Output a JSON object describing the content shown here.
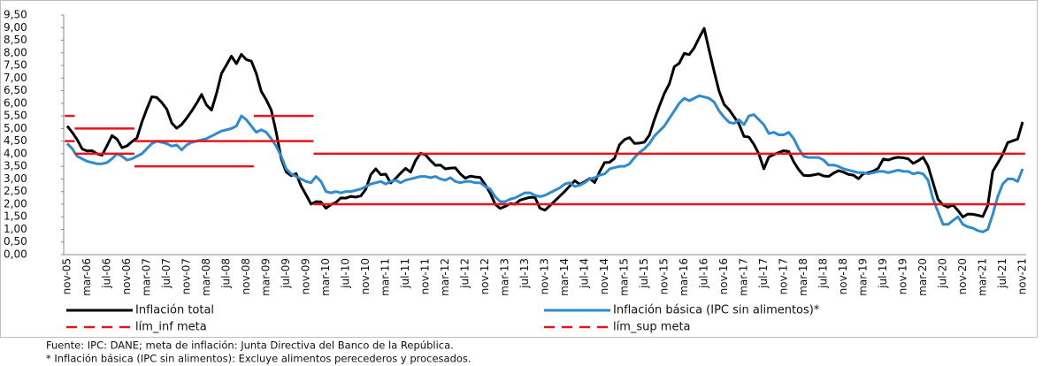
{
  "chart_data": {
    "type": "line",
    "categories": [
      "nov-05",
      null,
      null,
      null,
      "mar-06",
      null,
      null,
      null,
      "jul-06",
      null,
      null,
      null,
      "nov-06",
      null,
      null,
      null,
      "mar-07",
      null,
      null,
      null,
      "jul-07",
      null,
      null,
      null,
      "nov-07",
      null,
      null,
      null,
      "mar-08",
      null,
      null,
      null,
      "jul-08",
      null,
      null,
      null,
      "nov-08",
      null,
      null,
      null,
      "mar-09",
      null,
      null,
      null,
      "jul-09",
      null,
      null,
      null,
      "nov-09",
      null,
      null,
      null,
      "mar-10",
      null,
      null,
      null,
      "jul-10",
      null,
      null,
      null,
      "nov-10",
      null,
      null,
      null,
      "mar-11",
      null,
      null,
      null,
      "jul-11",
      null,
      null,
      null,
      "nov-11",
      null,
      null,
      null,
      "mar-12",
      null,
      null,
      null,
      "jul-12",
      null,
      null,
      null,
      "nov-12",
      null,
      null,
      null,
      "mar-13",
      null,
      null,
      null,
      "jul-13",
      null,
      null,
      null,
      "nov-13",
      null,
      null,
      null,
      "mar-14",
      null,
      null,
      null,
      "jul-14",
      null,
      null,
      null,
      "nov-14",
      null,
      null,
      null,
      "mar-15",
      null,
      null,
      null,
      "jul-15",
      null,
      null,
      null,
      "nov-15",
      null,
      null,
      null,
      "mar-16",
      null,
      null,
      null,
      "jul-16",
      null,
      null,
      null,
      "nov-16",
      null,
      null,
      null,
      "mar-17",
      null,
      null,
      null,
      "jul-17",
      null,
      null,
      null,
      "nov-17",
      null,
      null,
      null,
      "mar-18",
      null,
      null,
      null,
      "jul-18",
      null,
      null,
      null,
      "nov-18",
      null,
      null,
      null,
      "mar-19",
      null,
      null,
      null,
      "jul-19",
      null,
      null,
      null,
      "nov-19",
      null,
      null,
      null,
      "mar-20",
      null,
      null,
      null,
      "jul-20",
      null,
      null,
      null,
      "nov-20",
      null,
      null,
      null,
      "mar-21",
      null,
      null,
      null,
      "jul-21",
      null,
      null,
      null,
      "nov-21"
    ],
    "series": [
      {
        "name": "Inflación total",
        "color": "#000000",
        "style": "solid",
        "values": [
          5.1,
          4.85,
          4.56,
          4.19,
          4.11,
          4.12,
          4.0,
          3.94,
          4.32,
          4.72,
          4.58,
          4.24,
          4.31,
          4.48,
          4.62,
          5.25,
          5.78,
          6.26,
          6.23,
          6.03,
          5.77,
          5.22,
          5.01,
          5.16,
          5.41,
          5.69,
          6.0,
          6.35,
          5.93,
          5.73,
          6.39,
          7.18,
          7.52,
          7.87,
          7.57,
          7.94,
          7.73,
          7.67,
          7.18,
          6.47,
          6.14,
          5.73,
          4.85,
          3.81,
          3.28,
          3.13,
          3.21,
          2.72,
          2.37,
          2.0,
          2.1,
          2.09,
          1.84,
          1.98,
          2.07,
          2.25,
          2.24,
          2.31,
          2.28,
          2.33,
          2.59,
          3.17,
          3.4,
          3.17,
          3.19,
          2.84,
          3.02,
          3.23,
          3.42,
          3.27,
          3.73,
          4.02,
          3.96,
          3.73,
          3.54,
          3.55,
          3.4,
          3.43,
          3.44,
          3.2,
          3.03,
          3.11,
          3.08,
          3.06,
          2.77,
          2.44,
          2.0,
          1.83,
          1.91,
          2.02,
          2.0,
          2.16,
          2.22,
          2.27,
          2.27,
          1.84,
          1.76,
          1.94,
          2.13,
          2.32,
          2.51,
          2.72,
          2.93,
          2.79,
          2.89,
          3.02,
          2.86,
          3.29,
          3.65,
          3.66,
          3.82,
          4.36,
          4.56,
          4.64,
          4.41,
          4.42,
          4.46,
          4.74,
          5.35,
          5.89,
          6.39,
          6.77,
          7.45,
          7.59,
          7.98,
          7.93,
          8.2,
          8.6,
          8.97,
          8.1,
          7.27,
          6.48,
          5.96,
          5.75,
          5.47,
          5.18,
          4.69,
          4.66,
          4.37,
          3.99,
          3.4,
          3.87,
          3.97,
          4.05,
          4.12,
          4.09,
          3.68,
          3.37,
          3.14,
          3.13,
          3.16,
          3.2,
          3.12,
          3.1,
          3.23,
          3.33,
          3.27,
          3.18,
          3.15,
          3.01,
          3.21,
          3.25,
          3.31,
          3.43,
          3.79,
          3.75,
          3.82,
          3.86,
          3.84,
          3.8,
          3.62,
          3.72,
          3.86,
          3.51,
          2.85,
          2.19,
          1.97,
          1.88,
          1.97,
          1.75,
          1.49,
          1.61,
          1.6,
          1.56,
          1.51,
          1.95,
          3.3,
          3.63,
          3.97,
          4.44,
          4.51,
          4.58,
          5.26
        ]
      },
      {
        "name": "Inflación básica (IPC sin alimentos)*",
        "color": "#2e8bd0",
        "style": "solid",
        "values": [
          4.4,
          4.2,
          3.9,
          3.8,
          3.7,
          3.65,
          3.6,
          3.6,
          3.65,
          3.8,
          4.0,
          3.9,
          3.75,
          3.8,
          3.9,
          4.0,
          4.2,
          4.4,
          4.5,
          4.45,
          4.4,
          4.3,
          4.35,
          4.15,
          4.35,
          4.45,
          4.5,
          4.55,
          4.6,
          4.7,
          4.8,
          4.9,
          4.95,
          5.0,
          5.1,
          5.5,
          5.35,
          5.1,
          4.85,
          4.95,
          4.85,
          4.6,
          4.3,
          3.9,
          3.4,
          3.2,
          3.1,
          3.0,
          2.9,
          2.85,
          3.1,
          2.9,
          2.5,
          2.45,
          2.5,
          2.45,
          2.5,
          2.5,
          2.55,
          2.6,
          2.7,
          2.8,
          2.85,
          2.9,
          2.8,
          2.9,
          2.95,
          2.85,
          2.95,
          3.0,
          3.05,
          3.1,
          3.1,
          3.05,
          3.1,
          3.0,
          2.95,
          3.05,
          2.9,
          2.85,
          2.9,
          2.9,
          2.85,
          2.85,
          2.7,
          2.6,
          2.3,
          2.1,
          2.1,
          2.2,
          2.25,
          2.35,
          2.45,
          2.45,
          2.35,
          2.3,
          2.35,
          2.45,
          2.55,
          2.65,
          2.8,
          2.85,
          2.7,
          2.75,
          2.85,
          3.0,
          3.05,
          3.15,
          3.2,
          3.4,
          3.45,
          3.5,
          3.5,
          3.6,
          3.85,
          4.05,
          4.2,
          4.4,
          4.7,
          4.9,
          5.1,
          5.4,
          5.7,
          6.0,
          6.2,
          6.1,
          6.2,
          6.3,
          6.25,
          6.2,
          6.05,
          5.7,
          5.45,
          5.25,
          5.2,
          5.35,
          5.15,
          5.5,
          5.55,
          5.35,
          5.15,
          4.8,
          4.85,
          4.75,
          4.75,
          4.85,
          4.6,
          4.2,
          3.9,
          3.85,
          3.85,
          3.85,
          3.75,
          3.55,
          3.55,
          3.5,
          3.4,
          3.35,
          3.3,
          3.25,
          3.25,
          3.2,
          3.25,
          3.3,
          3.3,
          3.25,
          3.3,
          3.35,
          3.3,
          3.3,
          3.2,
          3.25,
          3.2,
          2.95,
          2.2,
          1.7,
          1.2,
          1.2,
          1.35,
          1.5,
          1.2,
          1.1,
          1.05,
          0.95,
          0.9,
          1.0,
          1.6,
          2.3,
          2.8,
          3.0,
          3.0,
          2.9,
          3.4
        ]
      },
      {
        "name": "lím_inf meta",
        "color": "#e8141b",
        "style": "step",
        "values": [
          4.5,
          4.5,
          4,
          4,
          4,
          4,
          4,
          4,
          4,
          4,
          4,
          4,
          4,
          4,
          3.5,
          3.5,
          3.5,
          3.5,
          3.5,
          3.5,
          3.5,
          3.5,
          3.5,
          3.5,
          3.5,
          3.5,
          3.5,
          3.5,
          3.5,
          3.5,
          3.5,
          3.5,
          3.5,
          3.5,
          3.5,
          3.5,
          3.5,
          3.5,
          4.5,
          4.5,
          4.5,
          4.5,
          4.5,
          4.5,
          4.5,
          4.5,
          4.5,
          4.5,
          4.5,
          4.5,
          2,
          2,
          2,
          2,
          2,
          2,
          2,
          2,
          2,
          2,
          2,
          2,
          2,
          2,
          2,
          2,
          2,
          2,
          2,
          2,
          2,
          2,
          2,
          2,
          2,
          2,
          2,
          2,
          2,
          2,
          2,
          2,
          2,
          2,
          2,
          2,
          2,
          2,
          2,
          2,
          2,
          2,
          2,
          2,
          2,
          2,
          2,
          2,
          2,
          2,
          2,
          2,
          2,
          2,
          2,
          2,
          2,
          2,
          2,
          2,
          2,
          2,
          2,
          2,
          2,
          2,
          2,
          2,
          2,
          2,
          2,
          2,
          2,
          2,
          2,
          2,
          2,
          2,
          2,
          2,
          2,
          2,
          2,
          2,
          2,
          2,
          2,
          2,
          2,
          2,
          2,
          2,
          2,
          2,
          2,
          2,
          2,
          2,
          2,
          2,
          2,
          2,
          2,
          2,
          2,
          2,
          2,
          2,
          2,
          2,
          2,
          2,
          2,
          2,
          2,
          2,
          2,
          2,
          2,
          2,
          2,
          2,
          2,
          2,
          2,
          2,
          2,
          2,
          2,
          2,
          2,
          2,
          2,
          2,
          2,
          2,
          2,
          2,
          2,
          2,
          2,
          2,
          2
        ]
      },
      {
        "name": "lím_sup meta",
        "color": "#e8141b",
        "style": "step",
        "values": [
          5.5,
          5.5,
          5,
          5,
          5,
          5,
          5,
          5,
          5,
          5,
          5,
          5,
          5,
          5,
          4.5,
          4.5,
          4.5,
          4.5,
          4.5,
          4.5,
          4.5,
          4.5,
          4.5,
          4.5,
          4.5,
          4.5,
          4.5,
          4.5,
          4.5,
          4.5,
          4.5,
          4.5,
          4.5,
          4.5,
          4.5,
          4.5,
          4.5,
          4.5,
          5.5,
          5.5,
          5.5,
          5.5,
          5.5,
          5.5,
          5.5,
          5.5,
          5.5,
          5.5,
          5.5,
          5.5,
          4,
          4,
          4,
          4,
          4,
          4,
          4,
          4,
          4,
          4,
          4,
          4,
          4,
          4,
          4,
          4,
          4,
          4,
          4,
          4,
          4,
          4,
          4,
          4,
          4,
          4,
          4,
          4,
          4,
          4,
          4,
          4,
          4,
          4,
          4,
          4,
          4,
          4,
          4,
          4,
          4,
          4,
          4,
          4,
          4,
          4,
          4,
          4,
          4,
          4,
          4,
          4,
          4,
          4,
          4,
          4,
          4,
          4,
          4,
          4,
          4,
          4,
          4,
          4,
          4,
          4,
          4,
          4,
          4,
          4,
          4,
          4,
          4,
          4,
          4,
          4,
          4,
          4,
          4,
          4,
          4,
          4,
          4,
          4,
          4,
          4,
          4,
          4,
          4,
          4,
          4,
          4,
          4,
          4,
          4,
          4,
          4,
          4,
          4,
          4,
          4,
          4,
          4,
          4,
          4,
          4,
          4,
          4,
          4,
          4,
          4,
          4,
          4,
          4,
          4,
          4,
          4,
          4,
          4,
          4,
          4,
          4,
          4,
          4,
          4,
          4,
          4,
          4,
          4,
          4,
          4,
          4,
          4,
          4,
          4,
          4,
          4,
          4,
          4,
          4,
          4,
          4,
          4
        ]
      }
    ],
    "ylim": [
      0,
      9.5
    ],
    "yticks": [
      {
        "value": 0,
        "label": "0,00"
      },
      {
        "value": 0.5,
        "label": "0,50"
      },
      {
        "value": 1,
        "label": "1,00"
      },
      {
        "value": 1.5,
        "label": "1,50"
      },
      {
        "value": 2,
        "label": "2,00"
      },
      {
        "value": 2.5,
        "label": "2,50"
      },
      {
        "value": 3,
        "label": "3,00"
      },
      {
        "value": 3.5,
        "label": "3,50"
      },
      {
        "value": 4,
        "label": "4,00"
      },
      {
        "value": 4.5,
        "label": "4,50"
      },
      {
        "value": 5,
        "label": "5,00"
      },
      {
        "value": 5.5,
        "label": "5,50"
      },
      {
        "value": 6,
        "label": "6,00"
      },
      {
        "value": 6.5,
        "label": "6,50"
      },
      {
        "value": 7,
        "label": "7,00"
      },
      {
        "value": 7.5,
        "label": "7,50"
      },
      {
        "value": 8,
        "label": "8,00"
      },
      {
        "value": 8.5,
        "label": "8,50"
      },
      {
        "value": 9,
        "label": "9,00"
      },
      {
        "value": 9.5,
        "label": "9,50"
      }
    ],
    "grid": false,
    "notes": [
      "Fuente: IPC: DANE;  meta de inflación: Junta Directiva del Banco de la República.",
      "* Inflación básica (IPC sin alimentos): Excluye alimentos perecederos y procesados."
    ]
  }
}
